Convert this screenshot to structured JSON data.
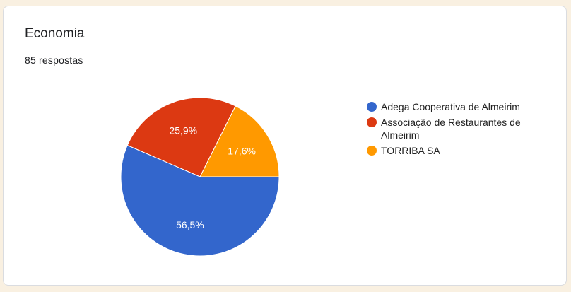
{
  "title": "Economia",
  "responses": "85 respostas",
  "chart_data": {
    "type": "pie",
    "title": "Economia",
    "legend_position": "right",
    "slices": [
      {
        "label": "TORRIBA SA",
        "value": 17.6,
        "display": "17,6%",
        "color": "#ff9900"
      },
      {
        "label": "Associação de Restaurantes de Almeirim",
        "value": 25.9,
        "display": "25,9%",
        "color": "#dc3912"
      },
      {
        "label": "Adega Cooperativa de Almeirim",
        "value": 56.5,
        "display": "56,5%",
        "color": "#3366cc"
      }
    ],
    "legend": [
      {
        "label": "Adega Cooperativa de Almeirim",
        "color": "#3366cc"
      },
      {
        "label": "Associação de Restaurantes de Almeirim",
        "color": "#dc3912"
      },
      {
        "label": "TORRIBA SA",
        "color": "#ff9900"
      }
    ]
  }
}
